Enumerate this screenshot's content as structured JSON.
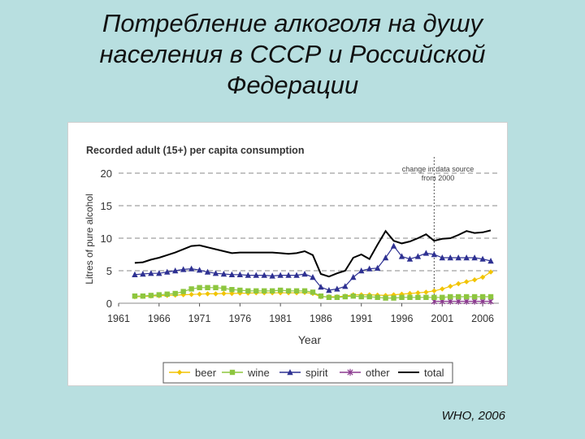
{
  "slide": {
    "title_line1": "Потребление алкоголя на душу",
    "title_line2": "населения в СССР и Российской",
    "title_line3": "Федерации",
    "source": "WHO, 2006"
  },
  "chart_data": {
    "type": "line",
    "title": "Recorded adult (15+) per capita consumption",
    "xlabel": "Year",
    "ylabel": "Litres of pure alcohol",
    "xlim": [
      1961,
      2008
    ],
    "ylim": [
      0,
      20
    ],
    "x_ticks": [
      1961,
      1966,
      1971,
      1976,
      1981,
      1986,
      1991,
      1996,
      2001,
      2006
    ],
    "y_ticks": [
      0,
      5,
      10,
      15,
      20
    ],
    "grid": "dashed-horizontal",
    "legend": "bottom",
    "annotation": {
      "text_line1": "change in data source",
      "text_line2": "from 2000",
      "x": 2000
    },
    "series": [
      {
        "name": "beer",
        "color": "#f2c400",
        "marker": "diamond",
        "x": [
          1963,
          1964,
          1965,
          1966,
          1967,
          1968,
          1969,
          1970,
          1971,
          1972,
          1973,
          1974,
          1975,
          1976,
          1977,
          1978,
          1979,
          1980,
          1981,
          1982,
          1983,
          1984,
          1985,
          1986,
          1987,
          1988,
          1989,
          1990,
          1991,
          1992,
          1993,
          1994,
          1995,
          1996,
          1997,
          1998,
          1999,
          2000,
          2001,
          2002,
          2003,
          2004,
          2005,
          2006,
          2007
        ],
        "values": [
          1.0,
          1.05,
          1.1,
          1.15,
          1.2,
          1.25,
          1.3,
          1.35,
          1.4,
          1.45,
          1.45,
          1.5,
          1.5,
          1.55,
          1.55,
          1.6,
          1.6,
          1.6,
          1.6,
          1.6,
          1.6,
          1.65,
          1.5,
          1.0,
          1.0,
          1.0,
          1.1,
          1.3,
          1.3,
          1.3,
          1.25,
          1.2,
          1.3,
          1.4,
          1.5,
          1.6,
          1.7,
          1.9,
          2.2,
          2.6,
          3.0,
          3.3,
          3.6,
          4.0,
          4.8
        ]
      },
      {
        "name": "wine",
        "color": "#8dc63f",
        "marker": "square",
        "x": [
          1963,
          1964,
          1965,
          1966,
          1967,
          1968,
          1969,
          1970,
          1971,
          1972,
          1973,
          1974,
          1975,
          1976,
          1977,
          1978,
          1979,
          1980,
          1981,
          1982,
          1983,
          1984,
          1985,
          1986,
          1987,
          1988,
          1989,
          1990,
          1991,
          1992,
          1993,
          1994,
          1995,
          1996,
          1997,
          1998,
          1999,
          2000,
          2001,
          2002,
          2003,
          2004,
          2005,
          2006,
          2007
        ],
        "values": [
          1.1,
          1.1,
          1.2,
          1.3,
          1.4,
          1.5,
          1.8,
          2.2,
          2.4,
          2.4,
          2.4,
          2.3,
          2.1,
          2.0,
          1.9,
          1.9,
          1.9,
          1.9,
          2.0,
          1.9,
          1.9,
          1.9,
          1.7,
          1.1,
          0.9,
          0.9,
          1.0,
          1.1,
          1.0,
          1.0,
          0.9,
          0.8,
          0.8,
          0.9,
          0.9,
          0.9,
          0.9,
          0.9,
          0.9,
          1.0,
          1.0,
          1.0,
          1.0,
          1.0,
          1.0
        ]
      },
      {
        "name": "spirit",
        "color": "#2e3192",
        "marker": "triangle",
        "x": [
          1963,
          1964,
          1965,
          1966,
          1967,
          1968,
          1969,
          1970,
          1971,
          1972,
          1973,
          1974,
          1975,
          1976,
          1977,
          1978,
          1979,
          1980,
          1981,
          1982,
          1983,
          1984,
          1985,
          1986,
          1987,
          1988,
          1989,
          1990,
          1991,
          1992,
          1993,
          1994,
          1995,
          1996,
          1997,
          1998,
          1999,
          2000,
          2001,
          2002,
          2003,
          2004,
          2005,
          2006,
          2007
        ],
        "values": [
          4.4,
          4.5,
          4.6,
          4.6,
          4.8,
          5.0,
          5.2,
          5.3,
          5.1,
          4.8,
          4.6,
          4.5,
          4.4,
          4.4,
          4.3,
          4.3,
          4.3,
          4.2,
          4.3,
          4.3,
          4.3,
          4.5,
          4.0,
          2.5,
          2.0,
          2.2,
          2.6,
          4.0,
          5.0,
          5.3,
          5.4,
          7.0,
          8.8,
          7.2,
          6.8,
          7.2,
          7.7,
          7.5,
          7.0,
          7.0,
          7.0,
          7.0,
          7.0,
          6.8,
          6.5
        ]
      },
      {
        "name": "other",
        "color": "#8b3a8f",
        "marker": "star",
        "x": [
          2000,
          2001,
          2002,
          2003,
          2004,
          2005,
          2006,
          2007
        ],
        "values": [
          0.3,
          0.3,
          0.3,
          0.3,
          0.3,
          0.3,
          0.3,
          0.3
        ]
      },
      {
        "name": "total",
        "color": "#000000",
        "marker": "none",
        "x": [
          1963,
          1964,
          1965,
          1966,
          1967,
          1968,
          1969,
          1970,
          1971,
          1972,
          1973,
          1974,
          1975,
          1976,
          1977,
          1978,
          1979,
          1980,
          1981,
          1982,
          1983,
          1984,
          1985,
          1986,
          1987,
          1988,
          1989,
          1990,
          1991,
          1992,
          1993,
          1994,
          1995,
          1996,
          1997,
          1998,
          1999,
          2000,
          2001,
          2002,
          2003,
          2004,
          2005,
          2006,
          2007
        ],
        "values": [
          6.2,
          6.3,
          6.7,
          7.0,
          7.4,
          7.8,
          8.3,
          8.8,
          8.9,
          8.6,
          8.3,
          8.0,
          7.7,
          7.8,
          7.8,
          7.8,
          7.8,
          7.8,
          7.7,
          7.6,
          7.7,
          8.0,
          7.4,
          4.5,
          4.1,
          4.6,
          5.0,
          7.0,
          7.5,
          6.8,
          9.0,
          11.1,
          9.6,
          9.2,
          9.5,
          10.0,
          10.6,
          9.6,
          9.9,
          10.0,
          10.5,
          11.1,
          10.8,
          10.9,
          11.2
        ]
      }
    ]
  }
}
